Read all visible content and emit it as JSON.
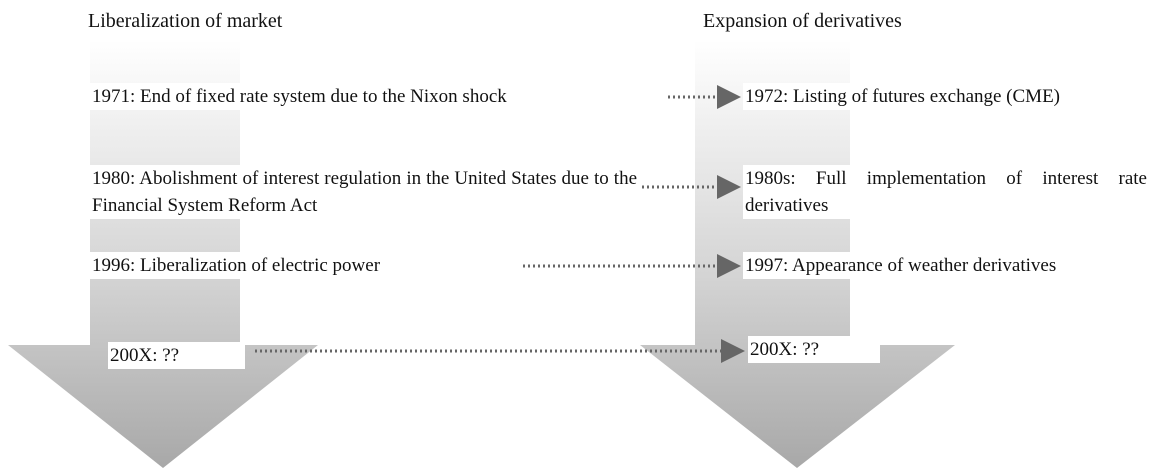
{
  "columns": [
    "Liberalization of market",
    "Expansion of derivatives"
  ],
  "rows": [
    {
      "left": "1971: End of fixed rate system due to the Nixon shock",
      "right": "1972: Listing of futures exchange (CME)"
    },
    {
      "left": "1980: Abolishment of interest regulation in the United States due to the Financial System Reform Act",
      "right": "1980s: Full implementation of interest rate derivatives"
    },
    {
      "left": "1996: Liberalization of electric power",
      "right": "1997: Appearance of weather derivatives"
    },
    {
      "left": "200X: ??",
      "right": "200X: ??"
    }
  ]
}
